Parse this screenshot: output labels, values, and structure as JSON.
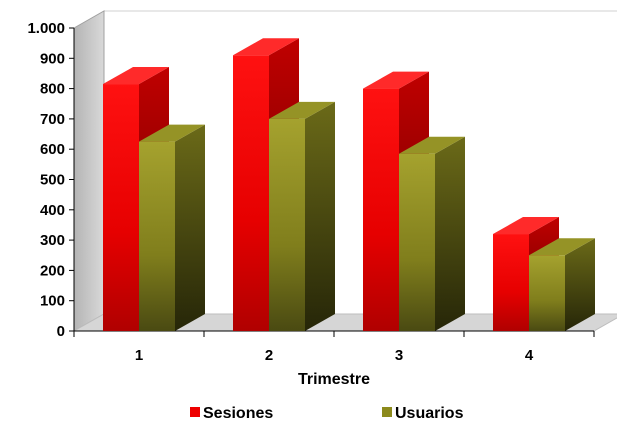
{
  "chart_data": {
    "type": "bar",
    "style": "3d-clustered-column",
    "categories": [
      "1",
      "2",
      "3",
      "4"
    ],
    "series": [
      {
        "name": "Sesiones",
        "values": [
          815,
          910,
          800,
          320
        ],
        "color": "#ee0000"
      },
      {
        "name": "Usuarios",
        "values": [
          625,
          700,
          585,
          250
        ],
        "color": "#8c8a1c"
      }
    ],
    "xlabel": "Trimestre",
    "ylabel": "",
    "ylim": [
      0,
      1000
    ],
    "yticks": [
      0,
      100,
      200,
      300,
      400,
      500,
      600,
      700,
      800,
      900,
      1000
    ],
    "ytick_labels": [
      "0",
      "100",
      "200",
      "300",
      "400",
      "500",
      "600",
      "700",
      "800",
      "900",
      "1.000"
    ],
    "grid": false,
    "legend_position": "bottom"
  }
}
